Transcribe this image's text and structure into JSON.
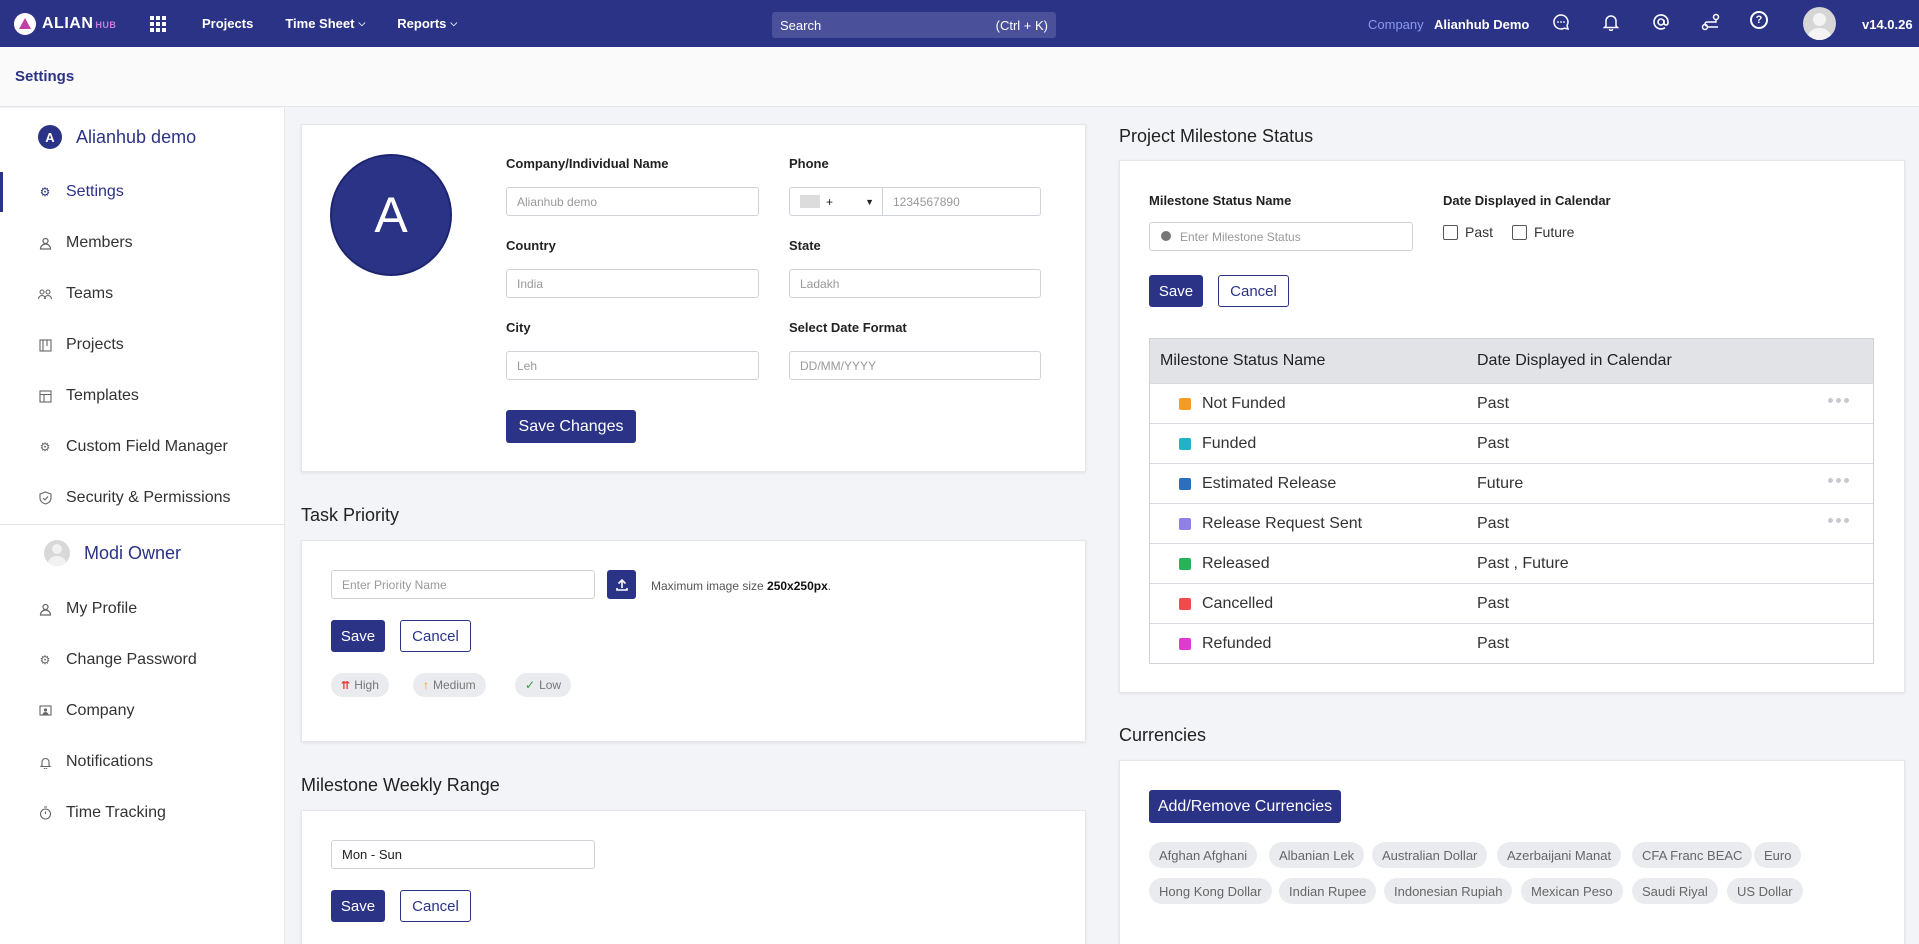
{
  "topbar": {
    "logo_text": "ALIAN",
    "logo_sub": "HUB",
    "nav": [
      {
        "label": "Projects",
        "has_dropdown": false
      },
      {
        "label": "Time Sheet",
        "has_dropdown": true
      },
      {
        "label": "Reports",
        "has_dropdown": true
      }
    ],
    "search_label": "Search",
    "search_shortcut": "(Ctrl + K)",
    "company_label": "Company",
    "company_name": "Alianhub Demo",
    "version": "v14.0.26"
  },
  "page": {
    "title": "Settings"
  },
  "sidebar": {
    "org_badge": "A",
    "org_name": "Alianhub demo",
    "items": [
      {
        "label": "Settings",
        "icon": "gear-icon",
        "active": true
      },
      {
        "label": "Members",
        "icon": "person-icon",
        "active": false
      },
      {
        "label": "Teams",
        "icon": "team-icon",
        "active": false
      },
      {
        "label": "Projects",
        "icon": "project-icon",
        "active": false
      },
      {
        "label": "Templates",
        "icon": "template-icon",
        "active": false
      },
      {
        "label": "Custom Field Manager",
        "icon": "gear-icon",
        "active": false
      },
      {
        "label": "Security & Permissions",
        "icon": "shield-icon",
        "active": false
      }
    ],
    "user_name": "Modi Owner",
    "user_items": [
      {
        "label": "My Profile",
        "icon": "person-icon"
      },
      {
        "label": "Change Password",
        "icon": "gear-icon"
      },
      {
        "label": "Company",
        "icon": "company-icon"
      },
      {
        "label": "Notifications",
        "icon": "bell-icon"
      },
      {
        "label": "Time Tracking",
        "icon": "stopwatch-icon"
      }
    ]
  },
  "company_form": {
    "avatar_letter": "A",
    "name_label": "Company/Individual Name",
    "name_value": "Alianhub demo",
    "phone_label": "Phone",
    "phone_code": "+",
    "phone_placeholder": "1234567890",
    "country_label": "Country",
    "country_value": "India",
    "state_label": "State",
    "state_value": "Ladakh",
    "city_label": "City",
    "city_value": "Leh",
    "date_format_label": "Select Date Format",
    "date_format_value": "DD/MM/YYYY",
    "save_label": "Save Changes"
  },
  "task_priority": {
    "title": "Task Priority",
    "placeholder": "Enter Priority Name",
    "hint_prefix": "Maximum image size ",
    "hint_size": "250x250px",
    "hint_suffix": ".",
    "save_label": "Save",
    "cancel_label": "Cancel",
    "chips": [
      {
        "label": "High",
        "icon": "double-chevron-up-icon",
        "color": "#e53935"
      },
      {
        "label": "Medium",
        "icon": "arrow-up-icon",
        "color": "#f39c12"
      },
      {
        "label": "Low",
        "icon": "check-icon",
        "color": "#2e9d3a"
      }
    ]
  },
  "milestone_weekly": {
    "title": "Milestone Weekly Range",
    "value": "Mon - Sun",
    "save_label": "Save",
    "cancel_label": "Cancel"
  },
  "milestone_status": {
    "title": "Project Milestone Status",
    "name_label": "Milestone Status Name",
    "name_placeholder": "Enter Milestone Status",
    "calendar_label": "Date Displayed in Calendar",
    "opt_past": "Past",
    "opt_future": "Future",
    "save_label": "Save",
    "cancel_label": "Cancel",
    "table_headers": [
      "Milestone Status Name",
      "Date Displayed in Calendar"
    ],
    "rows": [
      {
        "name": "Not Funded",
        "display": "Past",
        "color": "#f59a23",
        "menu": true
      },
      {
        "name": "Funded",
        "display": "Past",
        "color": "#20b2c8",
        "menu": false
      },
      {
        "name": "Estimated Release",
        "display": "Future",
        "color": "#2a6fc0",
        "menu": true
      },
      {
        "name": "Release Request Sent",
        "display": "Past",
        "color": "#8f7fe8",
        "menu": true
      },
      {
        "name": "Released",
        "display": "Past , Future",
        "color": "#27b35a",
        "menu": false
      },
      {
        "name": "Cancelled",
        "display": "Past",
        "color": "#ee4c4c",
        "menu": false
      },
      {
        "name": "Refunded",
        "display": "Past",
        "color": "#e03ad3",
        "menu": false
      }
    ]
  },
  "currencies": {
    "title": "Currencies",
    "button_label": "Add/Remove Currencies",
    "row1": [
      "Afghan Afghani",
      "Albanian Lek",
      "Australian Dollar",
      "Azerbaijani Manat",
      "CFA Franc BEAC",
      "Euro"
    ],
    "row2": [
      "Hong Kong Dollar",
      "Indian Rupee",
      "Indonesian Rupiah",
      "Mexican Peso",
      "Saudi Riyal",
      "US Dollar"
    ]
  }
}
